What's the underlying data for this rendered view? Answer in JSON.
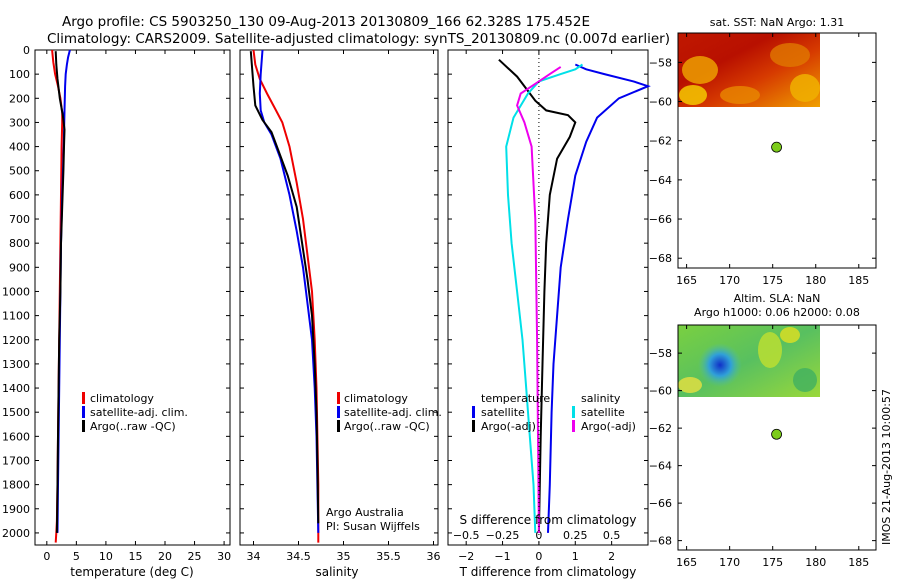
{
  "header": {
    "line1": "Argo profile: CS 5903250_130 09-Aug-2013 20130809_166 62.328S 175.452E",
    "line2": "Climatology: CARS2009. Satellite-adjusted climatology: synTS_20130809.nc (0.007d earlier)"
  },
  "side_label": "IMOS 21-Aug-2013 10:00:57",
  "colors": {
    "climatology": "#ee0000",
    "satellite": "#0000ee",
    "argo": "#000000",
    "sat_salinity": "#00e0e8",
    "argo_salinity": "#ee00ee",
    "marker": "#7ccc1a"
  },
  "chart_data": [
    {
      "type": "line",
      "name": "temperature-panel",
      "xlabel": "temperature (deg C)",
      "xlim": [
        -2,
        31
      ],
      "xticks": [
        0,
        5,
        10,
        15,
        20,
        25,
        30
      ],
      "ylim": [
        2050,
        0
      ],
      "yticks": [
        0,
        100,
        200,
        300,
        400,
        500,
        600,
        700,
        800,
        900,
        1000,
        1100,
        1200,
        1300,
        1400,
        1500,
        1600,
        1700,
        1800,
        1900,
        2000
      ],
      "legend": [
        "climatology",
        "satellite-adj. clim.",
        "Argo(..raw -QC)"
      ],
      "series": [
        {
          "name": "climatology",
          "color": "#ee0000",
          "x": [
            0.9,
            1.1,
            1.4,
            1.9,
            2.3,
            2.6,
            2.6,
            2.5,
            2.4,
            2.3,
            2.2,
            2.1,
            2.0,
            1.9,
            1.8,
            1.7,
            1.6,
            1.5
          ],
          "y": [
            0,
            50,
            100,
            150,
            200,
            260,
            300,
            400,
            600,
            800,
            1000,
            1200,
            1400,
            1600,
            1800,
            1950,
            2000,
            2040
          ]
        },
        {
          "name": "satellite-adj. clim.",
          "color": "#0000ee",
          "x": [
            3.9,
            3.6,
            3.4,
            3.2,
            3.1,
            3.0,
            2.9,
            2.8,
            2.6,
            2.4,
            2.3,
            2.2,
            2.1,
            2.0,
            1.9,
            1.8
          ],
          "y": [
            0,
            30,
            60,
            100,
            150,
            250,
            350,
            450,
            600,
            800,
            1000,
            1200,
            1400,
            1600,
            1800,
            2000
          ]
        },
        {
          "name": "Argo(..raw -QC)",
          "color": "#000000",
          "x": [
            1.5,
            1.6,
            1.8,
            2.2,
            2.7,
            3.0,
            2.9,
            2.8,
            2.6,
            2.4,
            2.3,
            2.1,
            2.0,
            1.9,
            1.8,
            1.7
          ],
          "y": [
            5,
            60,
            120,
            200,
            270,
            330,
            400,
            500,
            650,
            800,
            1000,
            1200,
            1400,
            1600,
            1800,
            2000
          ]
        }
      ]
    },
    {
      "type": "line",
      "name": "salinity-panel",
      "xlabel": "salinity",
      "xlim": [
        33.85,
        36.05
      ],
      "xticks": [
        34,
        34.5,
        35,
        35.5,
        36
      ],
      "xticklabels": [
        "34",
        "34.5",
        "35",
        "35.5",
        "36"
      ],
      "ylim": [
        2050,
        0
      ],
      "legend": [
        "climatology",
        "satellite-adj. clim.",
        "Argo(..raw -QC)"
      ],
      "annotation": [
        "Argo Australia",
        "PI: Susan Wijffels"
      ],
      "series": [
        {
          "name": "climatology",
          "color": "#ee0000",
          "x": [
            34.0,
            34.02,
            34.07,
            34.15,
            34.25,
            34.32,
            34.4,
            34.48,
            34.55,
            34.6,
            34.65,
            34.68,
            34.7,
            34.71,
            34.72,
            34.72,
            34.72
          ],
          "y": [
            0,
            60,
            120,
            180,
            250,
            300,
            400,
            550,
            700,
            850,
            1000,
            1200,
            1400,
            1600,
            1800,
            2000,
            2040
          ]
        },
        {
          "name": "satellite-adj. clim.",
          "color": "#0000ee",
          "x": [
            34.1,
            34.08,
            34.07,
            34.08,
            34.12,
            34.2,
            34.3,
            34.4,
            34.48,
            34.55,
            34.6,
            34.65,
            34.68,
            34.7,
            34.71,
            34.72
          ],
          "y": [
            0,
            100,
            180,
            250,
            300,
            350,
            450,
            600,
            750,
            900,
            1050,
            1200,
            1400,
            1600,
            1800,
            2000
          ]
        },
        {
          "name": "Argo(..raw -QC)",
          "color": "#000000",
          "x": [
            33.97,
            34.0,
            34.02,
            34.1,
            34.2,
            34.28,
            34.38,
            34.48,
            34.54,
            34.6,
            34.65,
            34.68,
            34.7,
            34.71,
            34.72
          ],
          "y": [
            5,
            150,
            230,
            290,
            340,
            420,
            520,
            650,
            800,
            950,
            1100,
            1300,
            1500,
            1700,
            1960
          ]
        }
      ]
    },
    {
      "type": "line",
      "name": "difference-panel",
      "xlabel_top": "S difference from climatology",
      "xlabel_bottom": "T difference from climatology",
      "top_xticks": [
        -0.5,
        -0.25,
        0,
        0.25,
        0.5
      ],
      "top_xticklabels": [
        "−0.5",
        "−0.25",
        "0",
        "0.25",
        "0.5"
      ],
      "xlim": [
        -2.5,
        3
      ],
      "xticks": [
        -2,
        -1,
        0,
        1,
        2
      ],
      "xticklabels": [
        "−2",
        "−1",
        "0",
        "1",
        "2"
      ],
      "ylim": [
        2050,
        0
      ],
      "legend_groups": [
        {
          "title": "temperature",
          "entries": [
            "satellite",
            "Argo(-adj)"
          ]
        },
        {
          "title": "salinity",
          "entries": [
            "satellite",
            "Argo(-adj)"
          ]
        }
      ],
      "series": [
        {
          "name": "temperature satellite",
          "color": "#0000ee",
          "x": [
            1.0,
            1.3,
            1.8,
            2.6,
            3.0,
            2.2,
            1.6,
            1.3,
            1.0,
            0.8,
            0.6,
            0.5,
            0.4,
            0.35,
            0.3,
            0.25
          ],
          "y": [
            60,
            80,
            100,
            130,
            150,
            200,
            280,
            380,
            520,
            700,
            900,
            1100,
            1300,
            1500,
            1800,
            2000
          ]
        },
        {
          "name": "temperature Argo(-adj)",
          "color": "#000000",
          "x": [
            -1.1,
            -0.6,
            -0.3,
            -0.1,
            0.2,
            0.8,
            1.0,
            0.85,
            0.5,
            0.3,
            0.2,
            0.15,
            0.1,
            0.05,
            0.0
          ],
          "y": [
            40,
            110,
            170,
            210,
            250,
            270,
            300,
            360,
            450,
            600,
            800,
            1000,
            1300,
            1600,
            2000
          ]
        },
        {
          "name": "salinity satellite",
          "color": "#00e0e8",
          "x": [
            1.2,
            1.0,
            0.6,
            0.0,
            -0.3,
            -0.7,
            -0.9,
            -0.85,
            -0.75,
            -0.6,
            -0.45,
            -0.35,
            -0.25,
            -0.15,
            -0.1
          ],
          "y": [
            60,
            80,
            100,
            130,
            180,
            280,
            400,
            600,
            800,
            1000,
            1200,
            1400,
            1600,
            1800,
            2000
          ]
        },
        {
          "name": "salinity Argo(-adj)",
          "color": "#ee00ee",
          "x": [
            0.6,
            0.3,
            -0.1,
            -0.5,
            -0.6,
            -0.4,
            -0.2,
            -0.1,
            -0.05,
            0.0
          ],
          "y": [
            70,
            100,
            140,
            180,
            230,
            300,
            400,
            700,
            1200,
            2000
          ]
        }
      ]
    },
    {
      "type": "heatmap",
      "name": "sst-map",
      "title": "sat. SST: NaN Argo: 1.31",
      "xlim": [
        164,
        187
      ],
      "xticks": [
        165,
        170,
        175,
        180,
        185
      ],
      "ylim": [
        -68.5,
        -56.5
      ],
      "yticks": [
        -58,
        -60,
        -62,
        -64,
        -66,
        -68
      ],
      "yticklabels": [
        "−58",
        "−60",
        "−62",
        "−64",
        "−66",
        "−68"
      ],
      "field_extent": {
        "lon": [
          164.5,
          180
        ],
        "lat": [
          -60.2,
          -56.5
        ]
      },
      "profile_position": {
        "lon": 175.452,
        "lat": -62.328
      }
    },
    {
      "type": "heatmap",
      "name": "sla-map",
      "title": "Altim. SLA: NaN",
      "subtitle": "Argo h1000: 0.06 h2000: 0.08",
      "xlim": [
        164,
        187
      ],
      "xticks": [
        165,
        170,
        175,
        180,
        185
      ],
      "ylim": [
        -68.5,
        -56.5
      ],
      "yticks": [
        -58,
        -60,
        -62,
        -64,
        -66,
        -68
      ],
      "yticklabels": [
        "−58",
        "−60",
        "−62",
        "−64",
        "−66",
        "−68"
      ],
      "field_extent": {
        "lon": [
          164.5,
          180
        ],
        "lat": [
          -60.2,
          -56.5
        ]
      },
      "profile_position": {
        "lon": 175.452,
        "lat": -62.328
      }
    }
  ]
}
